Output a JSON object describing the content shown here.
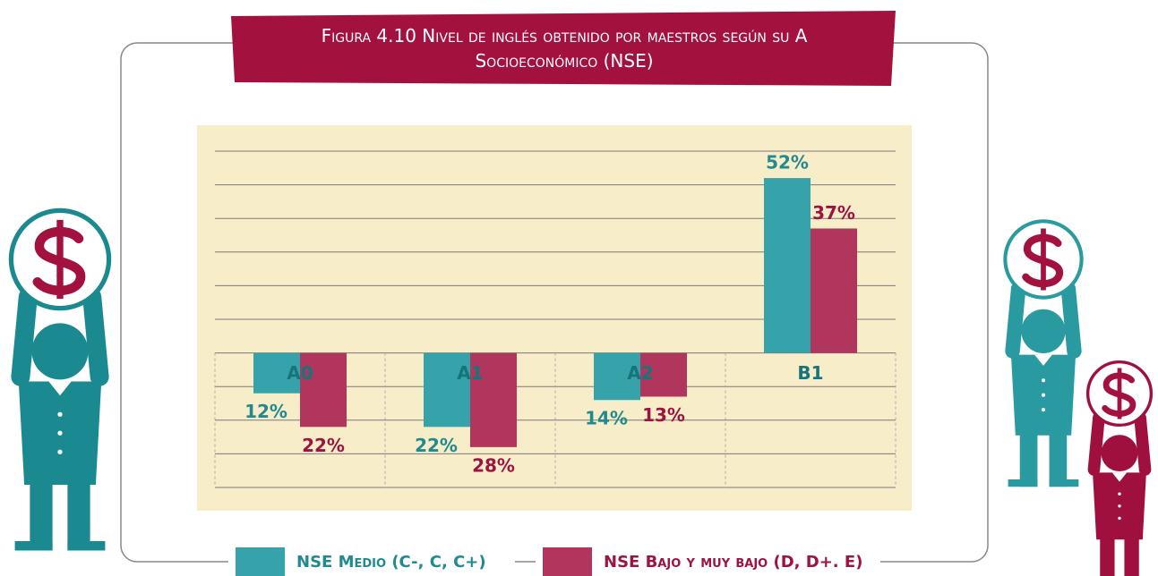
{
  "chart_data": {
    "type": "bar",
    "title": "Figura 4.10 Nivel de inglés obtenido por maestros según su A Socioeconómico (NSE)",
    "categories": [
      "A0",
      "A1",
      "A2",
      "B1"
    ],
    "downward": [
      true,
      true,
      true,
      false
    ],
    "series": [
      {
        "name": "NSE Medio (C-, C, C+)",
        "color": "#35a3a9",
        "values": [
          12,
          22,
          14,
          52
        ],
        "value_labels": [
          "12%",
          "22%",
          "14%",
          "52%"
        ]
      },
      {
        "name": "NSE Bajo y muy bajo (D, D+. E)",
        "color": "#b0365e",
        "values": [
          22,
          28,
          13,
          37
        ],
        "value_labels": [
          "22%",
          "28%",
          "13%",
          "37%"
        ]
      }
    ],
    "ylim": [
      -40,
      60
    ],
    "yticks": [
      -40,
      -30,
      -20,
      -10,
      0,
      10,
      20,
      30,
      40,
      50,
      60
    ],
    "tick_labels": false,
    "grid": true
  }
}
